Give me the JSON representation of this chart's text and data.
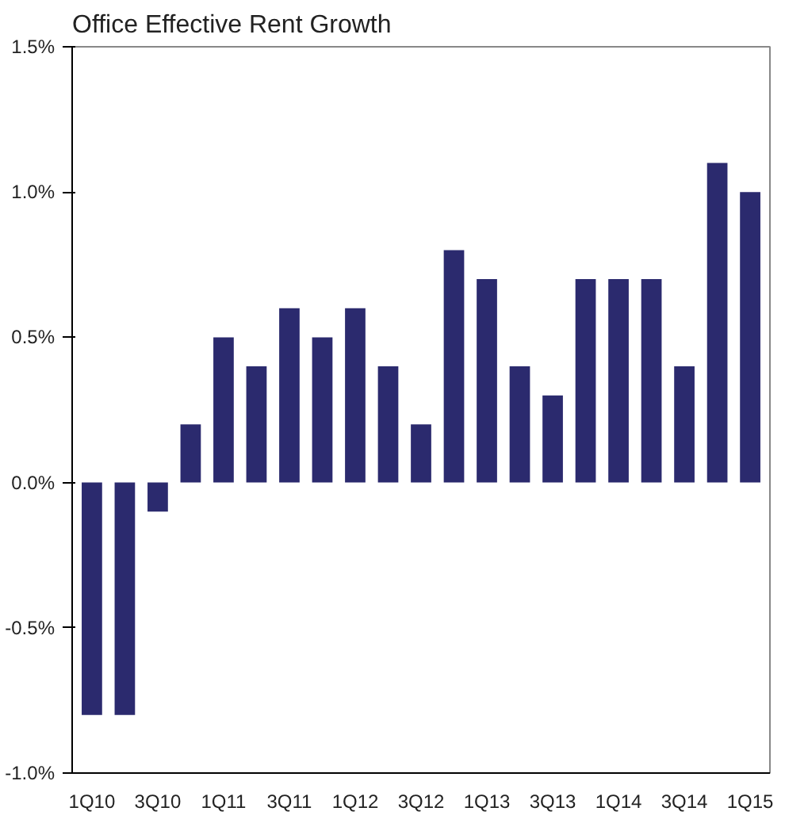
{
  "chart_data": {
    "type": "bar",
    "title": "Office Effective Rent Growth",
    "categories": [
      "1Q10",
      null,
      "3Q10",
      null,
      "1Q11",
      null,
      "3Q11",
      null,
      "1Q12",
      null,
      "3Q12",
      null,
      "1Q13",
      null,
      "3Q13",
      null,
      "1Q14",
      null,
      "3Q14",
      null,
      "1Q15"
    ],
    "values": [
      -0.8,
      -0.8,
      -0.1,
      0.2,
      0.5,
      0.4,
      0.6,
      0.5,
      0.6,
      0.4,
      0.2,
      0.8,
      0.7,
      0.4,
      0.3,
      0.7,
      0.7,
      0.7,
      0.4,
      1.1,
      1.0
    ],
    "color": "#2b2a6e",
    "ylim": [
      -1.0,
      1.5
    ],
    "yticks": [
      {
        "value": -1.0,
        "label": "-1.0%"
      },
      {
        "value": -0.5,
        "label": "-0.5%"
      },
      {
        "value": 0.0,
        "label": "0.0%"
      },
      {
        "value": 0.5,
        "label": "0.5%"
      },
      {
        "value": 1.0,
        "label": "1.0%"
      },
      {
        "value": 1.5,
        "label": "1.5%"
      }
    ],
    "grid": false
  }
}
